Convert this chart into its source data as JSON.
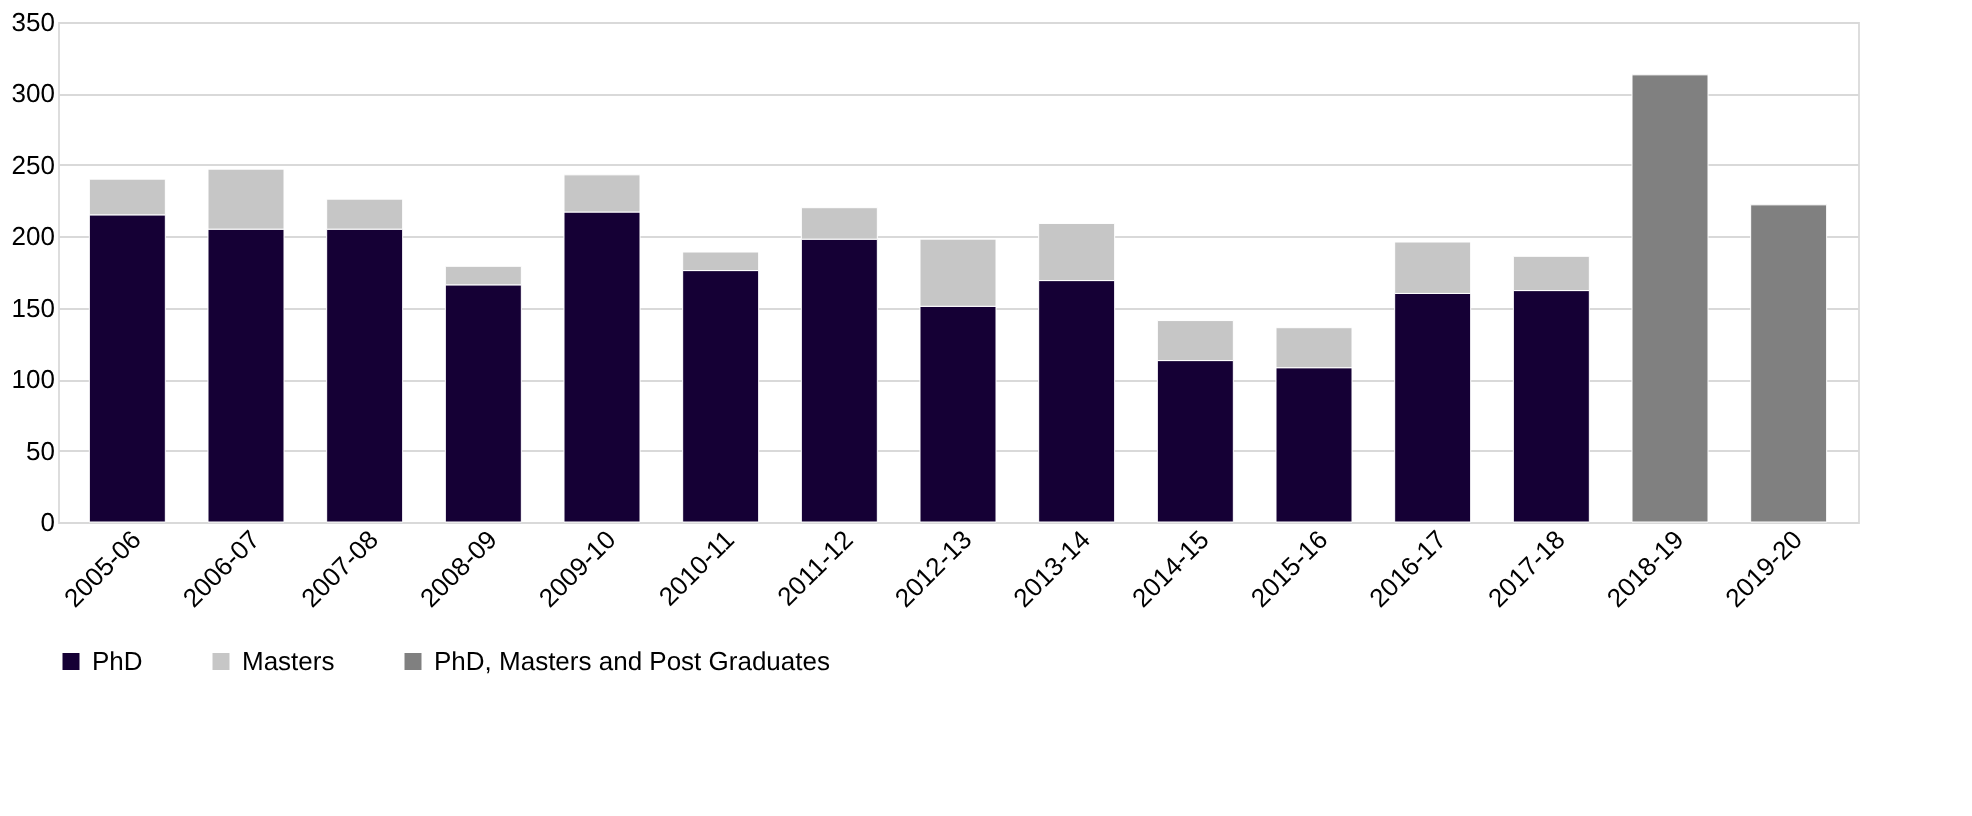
{
  "chart_data": {
    "type": "bar",
    "stacked": true,
    "categories": [
      "2005-06",
      "2006-07",
      "2007-08",
      "2008-09",
      "2009-10",
      "2010-11",
      "2011-12",
      "2012-13",
      "2013-14",
      "2014-15",
      "2015-16",
      "2016-17",
      "2017-18",
      "2018-19",
      "2019-20"
    ],
    "series": [
      {
        "name": "PhD",
        "color": "#150035",
        "values": [
          215,
          205,
          205,
          166,
          217,
          176,
          198,
          151,
          169,
          113,
          108,
          160,
          162,
          null,
          null
        ]
      },
      {
        "name": "Masters",
        "color": "#c6c6c6",
        "values": [
          25,
          42,
          21,
          13,
          26,
          13,
          22,
          47,
          40,
          28,
          28,
          36,
          24,
          null,
          null
        ]
      },
      {
        "name": "PhD, Masters and Post Graduates",
        "color": "#808080",
        "values": [
          null,
          null,
          null,
          null,
          null,
          null,
          null,
          null,
          null,
          null,
          null,
          null,
          null,
          313,
          222
        ]
      }
    ],
    "ylim": [
      0,
      350
    ],
    "yticks": [
      0,
      50,
      100,
      150,
      200,
      250,
      300,
      350
    ],
    "grid": "y",
    "legend": "bottom"
  }
}
